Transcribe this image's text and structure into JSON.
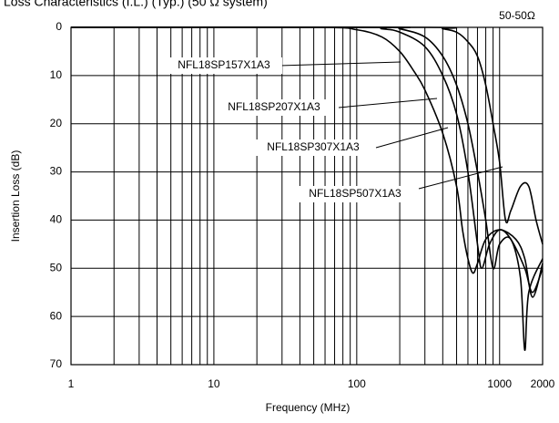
{
  "chart_data": {
    "type": "line",
    "title": "Loss Characteristics (I.L.) (Typ.)  (50 Ω system)",
    "note": "50-50Ω",
    "x_label": "Frequency (MHz)",
    "y_label": "Insertion Loss (dB)",
    "log_x": true,
    "y_inverted": true,
    "grid": true,
    "xlim": [
      1,
      2000
    ],
    "xticks": [
      1,
      10,
      100,
      1000,
      2000
    ],
    "ylim": [
      0,
      70
    ],
    "yticks": [
      0,
      10,
      20,
      30,
      40,
      50,
      60,
      70
    ],
    "series": [
      {
        "name": "NFL18SP157X1A3",
        "color": "#000000",
        "x": [
          1,
          50,
          100,
          150,
          200,
          250,
          300,
          400,
          500,
          550,
          600,
          650,
          700,
          800,
          1000,
          1300,
          1500,
          1700,
          2000
        ],
        "values": [
          0,
          0,
          0.5,
          2,
          5,
          9,
          13,
          22,
          33,
          42,
          48,
          51,
          49,
          44,
          42,
          44,
          48,
          56,
          49
        ]
      },
      {
        "name": "NFL18SP207X1A3",
        "color": "#000000",
        "x": [
          1,
          100,
          150,
          200,
          300,
          400,
          500,
          600,
          700,
          750,
          850,
          1000,
          1200,
          1500,
          1700,
          2000
        ],
        "values": [
          0,
          0,
          0.3,
          1,
          4,
          10,
          18,
          30,
          45,
          50,
          45,
          42,
          44,
          50,
          55,
          50
        ]
      },
      {
        "name": "NFL18SP307X1A3",
        "color": "#000000",
        "x": [
          1,
          150,
          200,
          300,
          400,
          500,
          600,
          700,
          800,
          900,
          1000,
          1200,
          1400,
          1500,
          1600,
          2000
        ],
        "values": [
          0,
          0,
          0.3,
          2,
          6,
          12,
          20,
          30,
          40,
          50,
          45,
          44,
          52,
          67,
          55,
          48
        ]
      },
      {
        "name": "NFL18SP507X1A3",
        "color": "#000000",
        "x": [
          1,
          300,
          400,
          500,
          600,
          700,
          800,
          900,
          1000,
          1100,
          1200,
          1400,
          1600,
          1800,
          2000
        ],
        "values": [
          0,
          0,
          0.3,
          1,
          3,
          6,
          12,
          20,
          28,
          40,
          38,
          33,
          33,
          40,
          45
        ]
      }
    ]
  }
}
